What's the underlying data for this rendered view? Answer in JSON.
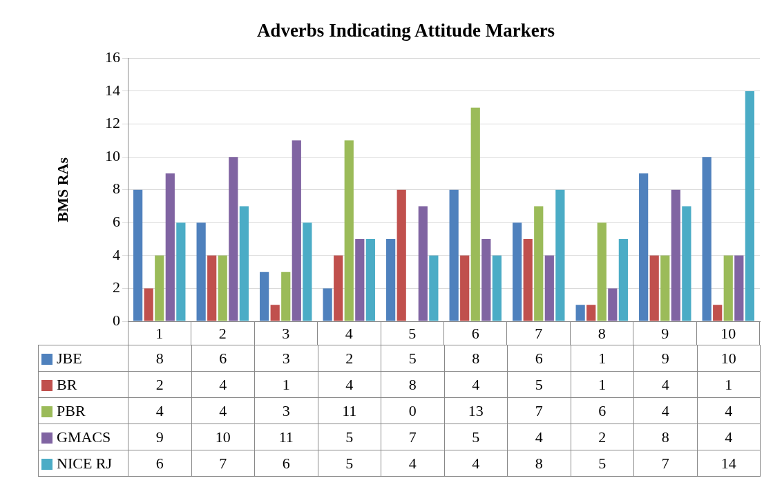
{
  "chart_data": {
    "type": "bar",
    "title": "Adverbs Indicating Attitude Markers",
    "ylabel": "BMS RAs",
    "categories": [
      "1",
      "2",
      "3",
      "4",
      "5",
      "6",
      "7",
      "8",
      "9",
      "10"
    ],
    "series": [
      {
        "name": "JBE",
        "color": "#4f81bd",
        "values": [
          8,
          6,
          3,
          2,
          5,
          8,
          6,
          1,
          9,
          10
        ]
      },
      {
        "name": "BR",
        "color": "#c0504d",
        "values": [
          2,
          4,
          1,
          4,
          8,
          4,
          5,
          1,
          4,
          1
        ]
      },
      {
        "name": "PBR",
        "color": "#9bbb59",
        "values": [
          4,
          4,
          3,
          11,
          0,
          13,
          7,
          6,
          4,
          4
        ]
      },
      {
        "name": "GMACS",
        "color": "#8064a2",
        "values": [
          9,
          10,
          11,
          5,
          7,
          5,
          4,
          2,
          8,
          4
        ]
      },
      {
        "name": "NICE RJ",
        "color": "#4bacc6",
        "values": [
          6,
          7,
          6,
          5,
          4,
          4,
          8,
          5,
          7,
          14
        ]
      }
    ],
    "ylim": [
      0,
      16
    ],
    "yticks": [
      0,
      2,
      4,
      6,
      8,
      10,
      12,
      14,
      16
    ],
    "grid": "y",
    "legend": "bottom",
    "data_labels": true
  }
}
